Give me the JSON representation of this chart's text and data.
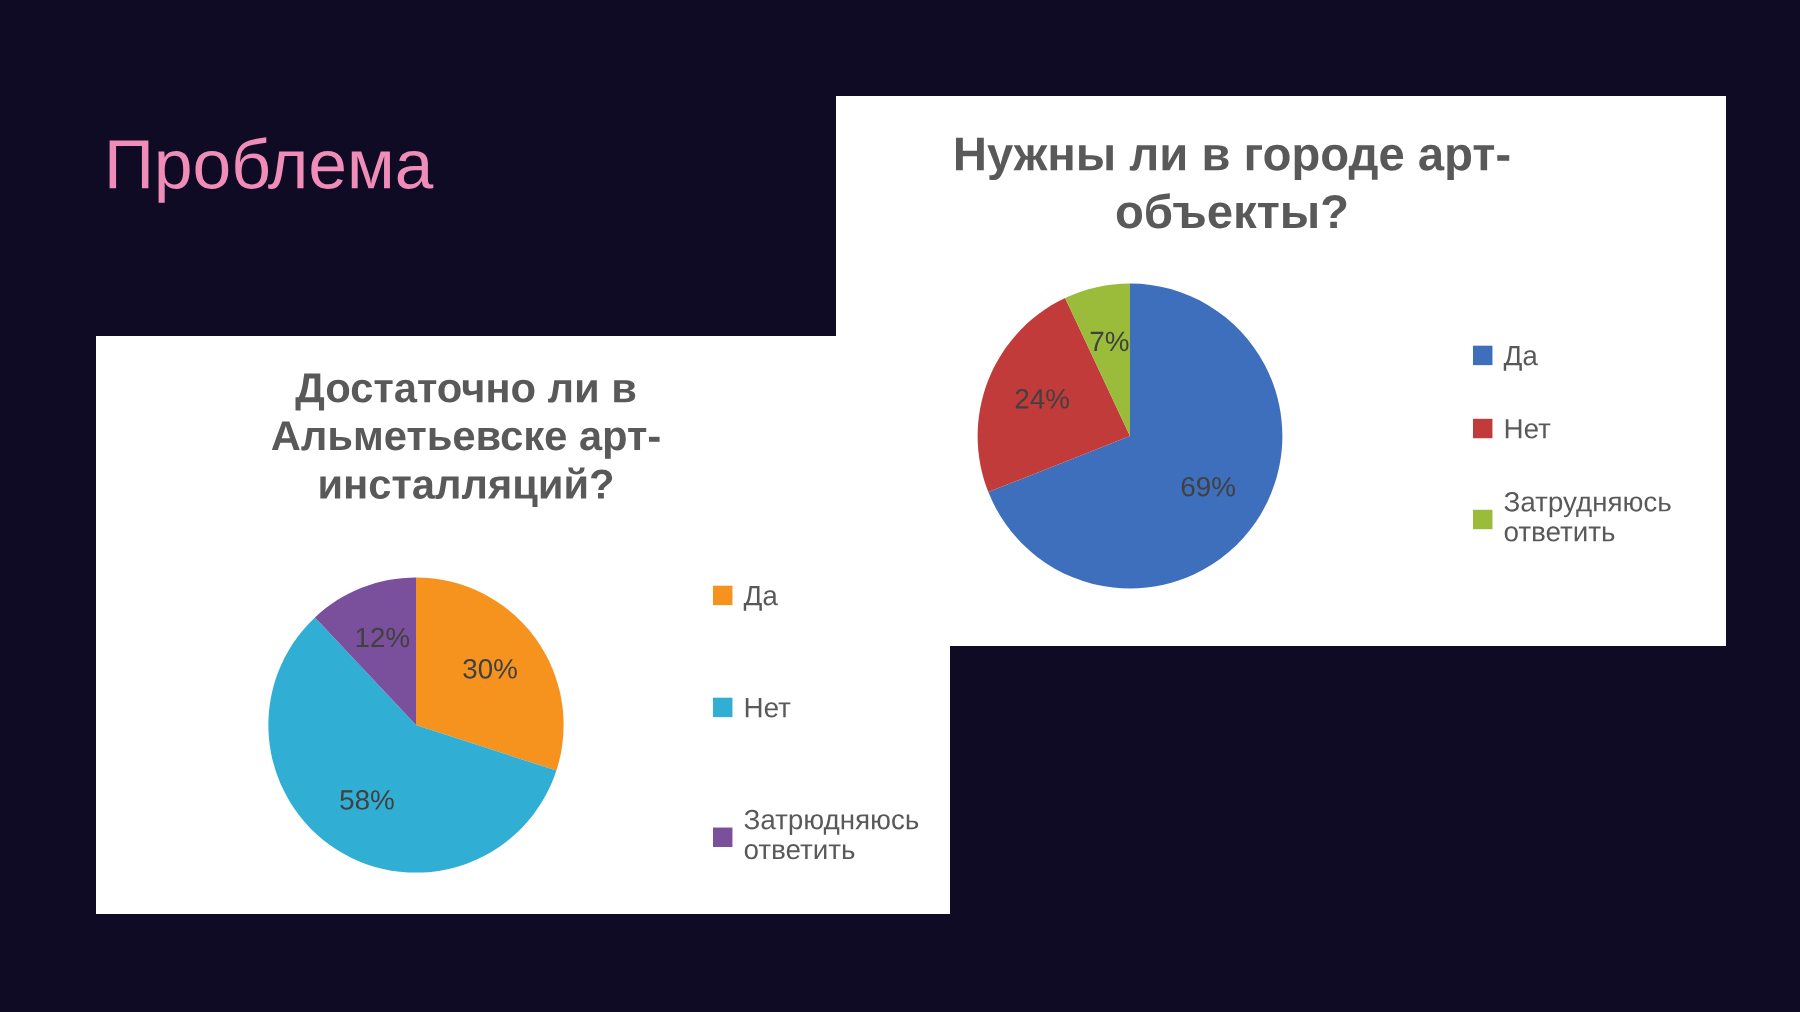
{
  "chart_data": [
    {
      "type": "pie",
      "title": "Нужны ли в городе арт-объекты?",
      "categories": [
        "Да",
        "Нет",
        "Затрудняюсь ответить"
      ],
      "values": [
        69,
        24,
        7
      ],
      "colors": [
        "#3d6fbd",
        "#c23b3b",
        "#9bbb3b"
      ],
      "value_labels": [
        "69%",
        "24%",
        "7%"
      ],
      "legend": "right",
      "annotations": [
        "Проблема"
      ]
    },
    {
      "type": "pie",
      "title": "Достаточно ли в Альметьевске арт-инсталляций?",
      "categories": [
        "Да",
        "Нет",
        "Затрюдняюсь ответить"
      ],
      "values": [
        30,
        58,
        12
      ],
      "colors": [
        "#f6931f",
        "#31aed3",
        "#7a4f9c"
      ],
      "value_labels": [
        "30%",
        "58%",
        "12%"
      ],
      "legend": "right"
    }
  ]
}
